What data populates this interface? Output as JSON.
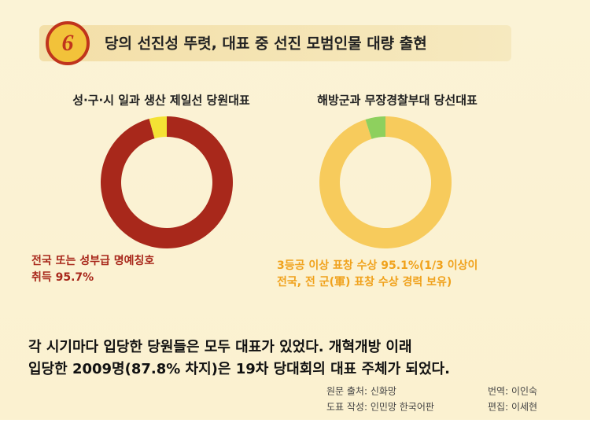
{
  "header": {
    "number": "6",
    "title": "당의 선진성 뚜렷, 대표 중 선진 모범인물 대량 출현"
  },
  "chart_data": [
    {
      "type": "donut",
      "title": "성·구·시 일과 생산 제일선 당원대표",
      "values": [
        95.7,
        4.3
      ],
      "colors": [
        "#a8281b",
        "#f4e234"
      ],
      "annotation": [
        "전국 또는 성부급 명예칭호",
        "취득 95.7%"
      ],
      "annotation_color": "#a8281b"
    },
    {
      "type": "donut",
      "title": "해방군과 무장경찰부대 당선대표",
      "values": [
        95.1,
        4.9
      ],
      "colors": [
        "#f7cb5c",
        "#8ed05e"
      ],
      "annotation": [
        "3등공 이상 표창 수상 95.1%(1/3 이상이",
        "전국, 전 군(軍) 표창 수상 경력 보유)"
      ],
      "annotation_color": "#f0a21c"
    }
  ],
  "summary": [
    "각 시기마다 입당한 당원들은 모두 대표가 있었다. 개혁개방 이래",
    "입당한 2009명(87.8% 차지)은 19차 당대회의 대표 주체가 되었다."
  ],
  "credits": {
    "source": "원문 출처: 신화망",
    "chart": "도표 작성: 인민망 한국어판",
    "translation": "번역: 이인숙",
    "editor": "편집: 이세현"
  }
}
